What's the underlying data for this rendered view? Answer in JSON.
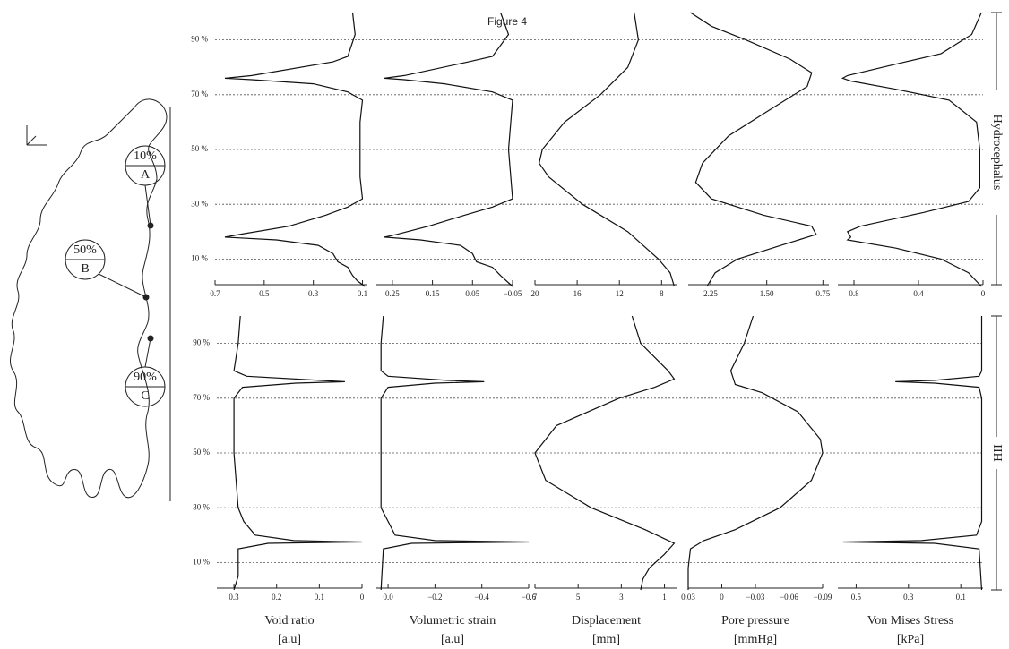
{
  "title": "Figure 4",
  "rows": [
    "Hydrocephalus",
    "IIH"
  ],
  "diagram": {
    "markers": [
      {
        "percent": "10%",
        "letter": "A"
      },
      {
        "percent": "50%",
        "letter": "B"
      },
      {
        "percent": "90%",
        "letter": "C"
      }
    ]
  },
  "chart_data": [
    {
      "type": "line",
      "color": "#111111",
      "ylim": [
        0,
        100
      ],
      "xlim": [
        0.7,
        0.08
      ],
      "grid": true,
      "yticks": [
        {
          "value": 10,
          "label": "10 %"
        },
        {
          "value": 30,
          "label": "30 %"
        },
        {
          "value": 50,
          "label": "50 %"
        },
        {
          "value": 70,
          "label": "70 %"
        },
        {
          "value": 90,
          "label": "90 %"
        }
      ],
      "xticks": [
        0.7,
        0.5,
        0.3,
        0.1
      ],
      "y": [
        100,
        92,
        84,
        82,
        77,
        76,
        75.5,
        74,
        71,
        68,
        60,
        50,
        40,
        32,
        29,
        26,
        22,
        19,
        18,
        17,
        15,
        12,
        9,
        7,
        4,
        2,
        0
      ],
      "values": [
        0.14,
        0.13,
        0.16,
        0.22,
        0.55,
        0.66,
        0.55,
        0.3,
        0.16,
        0.1,
        0.11,
        0.11,
        0.11,
        0.1,
        0.16,
        0.25,
        0.4,
        0.6,
        0.66,
        0.45,
        0.28,
        0.22,
        0.2,
        0.16,
        0.14,
        0.12,
        0.09
      ]
    },
    {
      "type": "line",
      "color": "#111111",
      "ylim": [
        0,
        100
      ],
      "xlim": [
        0.29,
        -0.05
      ],
      "xticks": [
        0.25,
        0.15,
        0.05,
        {
          "value": -0.05,
          "label": "−0.05"
        }
      ],
      "y": [
        100,
        92,
        84,
        82,
        77,
        76,
        75.5,
        74,
        71,
        68,
        50,
        32,
        29,
        26,
        22,
        19,
        18,
        17,
        15,
        12,
        9,
        7,
        4,
        0
      ],
      "values": [
        -0.02,
        -0.04,
        0.0,
        0.06,
        0.22,
        0.27,
        0.22,
        0.12,
        0.0,
        -0.05,
        -0.04,
        -0.05,
        0.0,
        0.07,
        0.16,
        0.24,
        0.27,
        0.18,
        0.08,
        0.05,
        0.04,
        0.0,
        -0.02,
        -0.05
      ]
    },
    {
      "type": "line",
      "color": "#111111",
      "ylim": [
        0,
        100
      ],
      "xlim": [
        20,
        6.5
      ],
      "xticks": [
        20,
        16,
        12,
        8
      ],
      "y": [
        100,
        90,
        80,
        70,
        60,
        50,
        45,
        40,
        30,
        20,
        10,
        5,
        0
      ],
      "values": [
        10.6,
        10.2,
        11.2,
        13.8,
        17.2,
        19.3,
        19.6,
        18.7,
        15.5,
        11.2,
        8.3,
        7.2,
        6.8
      ]
    },
    {
      "type": "line",
      "color": "#111111",
      "ylim": [
        0,
        100
      ],
      "xlim": [
        2.55,
        0.67
      ],
      "xticks": [
        2.25,
        {
          "value": 1.5,
          "label": "1.50"
        },
        0.75
      ],
      "y": [
        100,
        95,
        90,
        83,
        78,
        73,
        65,
        55,
        45,
        38,
        32,
        26,
        22,
        19,
        15,
        10,
        5,
        0
      ],
      "values": [
        2.52,
        2.24,
        1.78,
        1.19,
        0.9,
        0.96,
        1.43,
        2.01,
        2.36,
        2.45,
        2.24,
        1.54,
        0.9,
        0.84,
        1.31,
        1.89,
        2.19,
        2.3
      ]
    },
    {
      "type": "line",
      "color": "#111111",
      "ylim": [
        0,
        100
      ],
      "xlim": [
        0.9,
        0
      ],
      "xticks": [
        0.8,
        0.4,
        0
      ],
      "y": [
        100,
        92,
        85,
        82,
        77,
        76,
        75,
        72,
        68,
        60,
        50,
        36,
        31,
        27,
        22,
        20,
        18,
        17,
        14,
        10,
        5,
        0
      ],
      "values": [
        0.01,
        0.07,
        0.26,
        0.48,
        0.84,
        0.87,
        0.82,
        0.54,
        0.21,
        0.04,
        0.02,
        0.02,
        0.09,
        0.37,
        0.76,
        0.84,
        0.82,
        0.84,
        0.54,
        0.26,
        0.09,
        0.01
      ]
    },
    {
      "type": "line",
      "color": "#111111",
      "ylim": [
        0,
        100
      ],
      "xlim": [
        0.34,
        0
      ],
      "grid": true,
      "yticks": [
        {
          "value": 10,
          "label": "10 %"
        },
        {
          "value": 30,
          "label": "30 %"
        },
        {
          "value": 50,
          "label": "50 %"
        },
        {
          "value": 70,
          "label": "70 %"
        },
        {
          "value": 90,
          "label": "90 %"
        }
      ],
      "xticks": [
        0.3,
        0.2,
        0.1,
        0
      ],
      "xlabel": "Void ratio",
      "xunit": "[a.u]",
      "y": [
        100,
        90,
        80,
        78,
        76.5,
        76,
        75.5,
        74,
        70,
        50,
        30,
        25,
        20,
        18,
        17.5,
        17,
        15,
        10,
        5,
        0
      ],
      "values": [
        0.285,
        0.29,
        0.3,
        0.27,
        0.1,
        0.04,
        0.155,
        0.28,
        0.3,
        0.3,
        0.29,
        0.277,
        0.25,
        0.16,
        0.0,
        0.22,
        0.29,
        0.29,
        0.29,
        0.3
      ]
    },
    {
      "type": "line",
      "color": "#111111",
      "ylim": [
        0,
        100
      ],
      "xlim": [
        0.05,
        -0.6
      ],
      "xticks": [
        {
          "value": 0,
          "label": "0.0"
        },
        {
          "value": -0.2,
          "label": "−0.2"
        },
        {
          "value": -0.4,
          "label": "−0.4"
        },
        {
          "value": -0.6,
          "label": "−0.6"
        }
      ],
      "xlabel": "Volumetric strain",
      "xunit": "[a.u]",
      "y": [
        100,
        90,
        80,
        78,
        76.5,
        76,
        75.5,
        74,
        70,
        50,
        30,
        25,
        20,
        18,
        17.5,
        17,
        15,
        0
      ],
      "values": [
        0.02,
        0.03,
        0.03,
        0.0,
        -0.25,
        -0.41,
        -0.2,
        0.0,
        0.03,
        0.03,
        0.03,
        0.0,
        -0.03,
        -0.2,
        -0.6,
        -0.1,
        0.02,
        0.03
      ]
    },
    {
      "type": "line",
      "color": "#111111",
      "ylim": [
        0,
        100
      ],
      "xlim": [
        7,
        0.4
      ],
      "xticks": [
        7,
        5,
        3,
        1
      ],
      "xlabel": "Displacement",
      "xunit": "[mm]",
      "y": [
        100,
        90,
        80,
        77,
        74,
        70,
        60,
        50,
        40,
        30,
        22,
        17,
        13,
        8,
        4,
        0
      ],
      "values": [
        2.5,
        2.1,
        0.83,
        0.55,
        1.45,
        3.1,
        6.0,
        7.0,
        6.5,
        4.4,
        1.9,
        0.55,
        1.0,
        1.7,
        2.0,
        2.1
      ]
    },
    {
      "type": "line",
      "color": "#111111",
      "ylim": [
        0,
        100
      ],
      "xlim": [
        0.03,
        -0.09
      ],
      "xticks": [
        0.03,
        0,
        {
          "value": -0.03,
          "label": "−0.03"
        },
        {
          "value": -0.06,
          "label": "−0.06"
        },
        {
          "value": -0.09,
          "label": "−0.09"
        }
      ],
      "xlabel": "Pore pressure",
      "xunit": "[mmHg]",
      "y": [
        100,
        90,
        80,
        75,
        72,
        65,
        55,
        50,
        40,
        30,
        22,
        18,
        15,
        8,
        0
      ],
      "values": [
        -0.028,
        -0.02,
        -0.008,
        -0.012,
        -0.036,
        -0.068,
        -0.088,
        -0.09,
        -0.08,
        -0.052,
        -0.012,
        0.016,
        0.028,
        0.03,
        0.03
      ]
    },
    {
      "type": "line",
      "color": "#111111",
      "ylim": [
        0,
        100
      ],
      "xlim": [
        0.57,
        0.015
      ],
      "xticks": [
        0.5,
        0.3,
        0.1
      ],
      "xlabel": "Von Mises Stress",
      "xunit": "[kPa]",
      "y": [
        100,
        90,
        80,
        78,
        76.5,
        76,
        75.5,
        74,
        70,
        50,
        25,
        20,
        18,
        17.5,
        17,
        15,
        0
      ],
      "values": [
        0.02,
        0.02,
        0.02,
        0.03,
        0.2,
        0.35,
        0.2,
        0.03,
        0.02,
        0.02,
        0.02,
        0.04,
        0.25,
        0.55,
        0.2,
        0.03,
        0.02
      ]
    }
  ]
}
